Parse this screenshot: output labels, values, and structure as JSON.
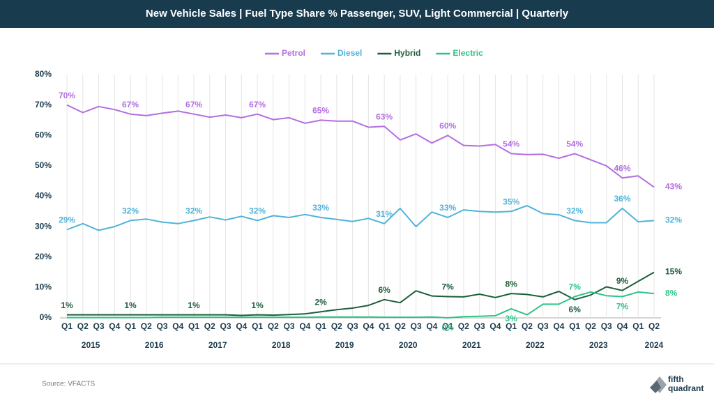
{
  "chart_data": {
    "type": "line",
    "title": "New Vehicle Sales | Fuel Type Share % Passenger, SUV, Light Commercial | Quarterly",
    "categories": [
      "Q1",
      "Q2",
      "Q3",
      "Q4",
      "Q1",
      "Q2",
      "Q3",
      "Q4",
      "Q1",
      "Q2",
      "Q3",
      "Q4",
      "Q1",
      "Q2",
      "Q3",
      "Q4",
      "Q1",
      "Q2",
      "Q3",
      "Q4",
      "Q1",
      "Q2",
      "Q3",
      "Q4",
      "Q1",
      "Q2",
      "Q3",
      "Q4",
      "Q1",
      "Q2",
      "Q3",
      "Q4",
      "Q1",
      "Q2",
      "Q3",
      "Q4",
      "Q1",
      "Q2"
    ],
    "years": [
      "2015",
      "2016",
      "2017",
      "2018",
      "2019",
      "2020",
      "2021",
      "2022",
      "2023",
      "2024"
    ],
    "ylim": [
      0,
      80
    ],
    "yticks": [
      {
        "value": 0,
        "label": "0%"
      },
      {
        "value": 10,
        "label": "10%"
      },
      {
        "value": 20,
        "label": "20%"
      },
      {
        "value": 30,
        "label": "30%"
      },
      {
        "value": 40,
        "label": "40%"
      },
      {
        "value": 50,
        "label": "50%"
      },
      {
        "value": 60,
        "label": "60%"
      },
      {
        "value": 70,
        "label": "70%"
      },
      {
        "value": 80,
        "label": "80%"
      }
    ],
    "grid": true,
    "legend": "top",
    "series": [
      {
        "name": "Petrol",
        "color": "#b36ee0",
        "values": [
          70,
          67.5,
          69.5,
          68.5,
          67,
          66.5,
          67.3,
          68,
          67,
          66,
          66.7,
          65.8,
          67,
          65.2,
          65.8,
          64,
          65,
          64.7,
          64.7,
          62.7,
          63,
          58.5,
          60.5,
          57.5,
          60,
          56.7,
          56.5,
          57,
          54,
          53.7,
          53.8,
          52.5,
          54,
          52,
          50,
          46,
          46.7,
          43
        ],
        "value_labels": [
          "70%",
          null,
          null,
          null,
          "67%",
          null,
          null,
          null,
          "67%",
          null,
          null,
          null,
          "67%",
          null,
          null,
          null,
          "65%",
          null,
          null,
          null,
          "63%",
          null,
          null,
          null,
          "60%",
          null,
          null,
          null,
          "54%",
          null,
          null,
          null,
          "54%",
          null,
          null,
          "46%",
          null,
          "43%"
        ]
      },
      {
        "name": "Diesel",
        "color": "#4fb3d9",
        "values": [
          29,
          31,
          28.8,
          30,
          32,
          32.5,
          31.5,
          31,
          32,
          33.2,
          32.2,
          33.4,
          32,
          33.6,
          33,
          34,
          33,
          32.4,
          31.7,
          32.7,
          31,
          36,
          30,
          34.8,
          33,
          35.5,
          35,
          34.8,
          35,
          36.9,
          34.3,
          33.9,
          32,
          31.3,
          31.3,
          36,
          31.6,
          32
        ],
        "value_labels": [
          "29%",
          null,
          null,
          null,
          "32%",
          null,
          null,
          null,
          "32%",
          null,
          null,
          null,
          "32%",
          null,
          null,
          null,
          "33%",
          null,
          null,
          null,
          "31%",
          null,
          null,
          null,
          "33%",
          null,
          null,
          null,
          "35%",
          null,
          null,
          null,
          "32%",
          null,
          null,
          "36%",
          null,
          "32%"
        ]
      },
      {
        "name": "Hybrid",
        "color": "#1e5e3a",
        "values": [
          1,
          1,
          1,
          1,
          1,
          1,
          1,
          1,
          1,
          1,
          1,
          0.8,
          1,
          0.9,
          1.1,
          1.3,
          2,
          2.7,
          3.2,
          4.1,
          6,
          5,
          8.9,
          7.2,
          7,
          6.9,
          7.8,
          6.7,
          8,
          7.7,
          6.9,
          8.7,
          6,
          7.5,
          10.2,
          9,
          12,
          15
        ],
        "value_labels": [
          "1%",
          null,
          null,
          null,
          "1%",
          null,
          null,
          null,
          "1%",
          null,
          null,
          null,
          "1%",
          null,
          null,
          null,
          "2%",
          null,
          null,
          null,
          "6%",
          null,
          null,
          null,
          "7%",
          null,
          null,
          null,
          "8%",
          null,
          null,
          null,
          "6%",
          null,
          null,
          "9%",
          null,
          "15%"
        ]
      },
      {
        "name": "Electric",
        "color": "#2ec486",
        "values": [
          0.1,
          0.1,
          0.1,
          0.1,
          0.1,
          0.1,
          0.2,
          0.2,
          0.2,
          0.2,
          0.2,
          0.2,
          0.2,
          0.2,
          0.2,
          0.2,
          0.3,
          0.3,
          0.3,
          0.3,
          0.2,
          0.2,
          0.2,
          0.3,
          0,
          0.4,
          0.5,
          0.7,
          3,
          1,
          4.5,
          4.5,
          7,
          8.5,
          7.3,
          7,
          8.5,
          8
        ],
        "value_labels": [
          null,
          null,
          null,
          null,
          null,
          null,
          null,
          null,
          null,
          null,
          null,
          null,
          null,
          null,
          null,
          null,
          null,
          null,
          null,
          null,
          null,
          null,
          null,
          null,
          "0%",
          null,
          null,
          null,
          "3%",
          null,
          null,
          null,
          "7%",
          null,
          null,
          "7%",
          null,
          "8%"
        ]
      }
    ],
    "source": "Source: VFACTS",
    "logo": [
      "fifth",
      "quadrant"
    ]
  }
}
